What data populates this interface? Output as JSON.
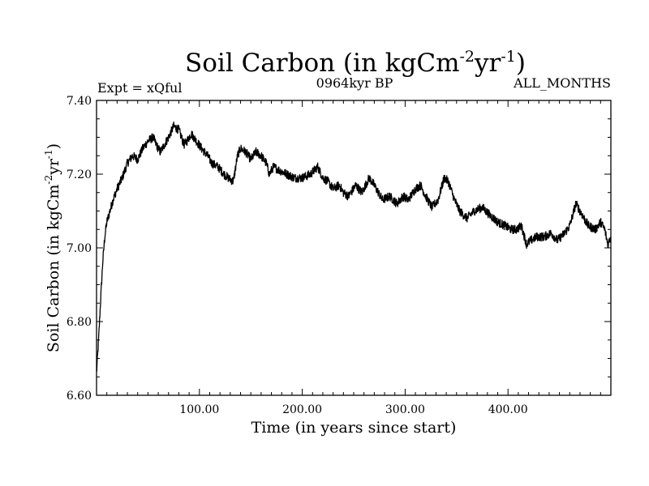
{
  "chart_data": {
    "type": "line",
    "title": {
      "text": "Soil Carbon (in kgCm",
      "sup1": "-2",
      "mid": "yr",
      "sup2": "-1",
      "end": ")"
    },
    "subtitle_left": "Expt = xQful",
    "subtitle_center": "0964kyr BP",
    "subtitle_right": "ALL_MONTHS",
    "xlabel": "Time (in years since start)",
    "ylabel": {
      "text": "Soil Carbon (in kgCm",
      "sup1": "-2",
      "mid": "yr",
      "sup2": "-1",
      "end": ")"
    },
    "xlim": [
      0,
      500
    ],
    "ylim": [
      6.6,
      7.4
    ],
    "x_ticks": [
      100,
      200,
      300,
      400
    ],
    "x_tick_labels": [
      "100.00",
      "200.00",
      "300.00",
      "400.00"
    ],
    "y_ticks": [
      6.6,
      6.8,
      7.0,
      7.2,
      7.4
    ],
    "y_tick_labels": [
      "6.60",
      "6.80",
      "7.00",
      "7.20",
      "7.40"
    ],
    "grid": false,
    "series": [
      {
        "name": "Soil Carbon",
        "noise_amplitude": 0.012,
        "x": [
          0,
          2,
          4,
          6,
          8,
          10,
          13,
          16,
          20,
          25,
          30,
          35,
          40,
          45,
          50,
          55,
          58,
          62,
          66,
          70,
          75,
          80,
          85,
          88,
          92,
          97,
          102,
          108,
          112,
          118,
          124,
          128,
          133,
          137,
          140,
          145,
          150,
          155,
          160,
          165,
          168,
          172,
          178,
          185,
          192,
          200,
          208,
          215,
          220,
          225,
          230,
          236,
          240,
          245,
          252,
          258,
          265,
          270,
          278,
          285,
          292,
          298,
          303,
          310,
          315,
          320,
          326,
          332,
          338,
          342,
          348,
          353,
          360,
          367,
          375,
          382,
          390,
          397,
          403,
          408,
          413,
          418,
          422,
          428,
          435,
          442,
          448,
          455,
          460,
          466,
          470,
          478,
          485,
          490,
          494,
          497,
          500
        ],
        "values": [
          6.66,
          6.75,
          6.86,
          6.96,
          7.03,
          7.07,
          7.1,
          7.13,
          7.16,
          7.19,
          7.23,
          7.25,
          7.24,
          7.27,
          7.29,
          7.3,
          7.28,
          7.26,
          7.28,
          7.3,
          7.33,
          7.32,
          7.28,
          7.29,
          7.31,
          7.29,
          7.27,
          7.25,
          7.23,
          7.22,
          7.2,
          7.19,
          7.18,
          7.25,
          7.27,
          7.26,
          7.24,
          7.26,
          7.25,
          7.23,
          7.2,
          7.22,
          7.21,
          7.2,
          7.19,
          7.19,
          7.2,
          7.22,
          7.19,
          7.18,
          7.16,
          7.17,
          7.15,
          7.14,
          7.17,
          7.15,
          7.19,
          7.17,
          7.13,
          7.14,
          7.12,
          7.14,
          7.13,
          7.16,
          7.17,
          7.14,
          7.11,
          7.13,
          7.19,
          7.18,
          7.13,
          7.1,
          7.08,
          7.1,
          7.11,
          7.09,
          7.07,
          7.06,
          7.05,
          7.05,
          7.06,
          7.01,
          7.02,
          7.03,
          7.03,
          7.04,
          7.02,
          7.04,
          7.06,
          7.12,
          7.1,
          7.06,
          7.05,
          7.07,
          7.05,
          7.01,
          7.03
        ]
      }
    ]
  }
}
